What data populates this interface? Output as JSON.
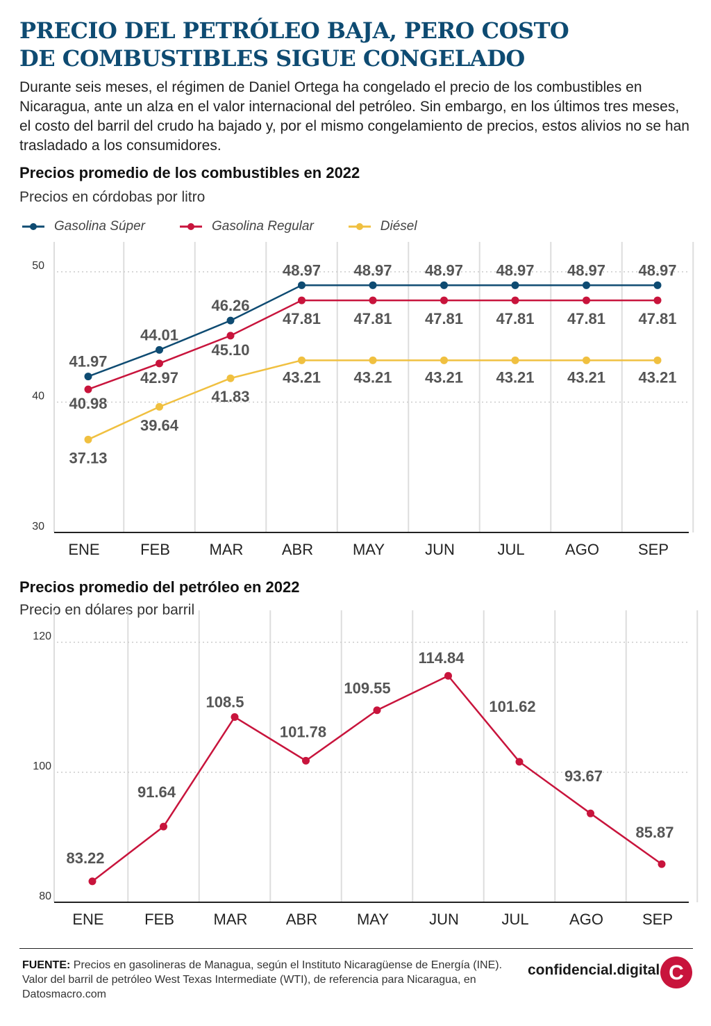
{
  "header": {
    "title_line1": "PRECIO DEL PETRÓLEO BAJA, PERO COSTO",
    "title_line2": "DE COMBUSTIBLES SIGUE CONGELADO",
    "intro": "Durante seis meses, el régimen de Daniel Ortega ha congelado el precio de los combustibles en Nicaragua, ante un alza en el valor internacional del petróleo. Sin embargo, en los últimos tres meses, el costo del barril del crudo ha bajado y, por el mismo congelamiento de precios, estos alivios no se han trasladado a los consumidores."
  },
  "colors": {
    "title": "#0e4b72",
    "super": "#0e4b72",
    "regular": "#c8143c",
    "diesel": "#f0c040",
    "oil": "#c8143c",
    "grid": "#dddddd",
    "axis": "#222222"
  },
  "chart_data": [
    {
      "type": "line",
      "title": "Precios promedio de los combustibles en 2022",
      "subtitle": "Precios en córdobas por litro",
      "categories": [
        "ENE",
        "FEB",
        "MAR",
        "ABR",
        "MAY",
        "JUN",
        "JUL",
        "AGO",
        "SEP"
      ],
      "series": [
        {
          "name": "Gasolina Súper",
          "values": [
            41.97,
            44.01,
            46.26,
            48.97,
            48.97,
            48.97,
            48.97,
            48.97,
            48.97
          ]
        },
        {
          "name": "Gasolina Regular",
          "values": [
            40.98,
            42.97,
            45.1,
            47.81,
            47.81,
            47.81,
            47.81,
            47.81,
            47.81
          ]
        },
        {
          "name": "Diésel",
          "values": [
            37.13,
            39.64,
            41.83,
            43.21,
            43.21,
            43.21,
            43.21,
            43.21,
            43.21
          ]
        }
      ],
      "value_labels": {
        "Gasolina Súper": [
          "41.97",
          "44.01",
          "46.26",
          "48.97",
          "48.97",
          "48.97",
          "48.97",
          "48.97",
          "48.97"
        ],
        "Gasolina Regular": [
          "40.98",
          "42.97",
          "45.10",
          "47.81",
          "47.81",
          "47.81",
          "47.81",
          "47.81",
          "47.81"
        ],
        "Diésel": [
          "37.13",
          "39.64",
          "41.83",
          "43.21",
          "43.21",
          "43.21",
          "43.21",
          "43.21",
          "43.21"
        ]
      },
      "yticks": [
        30,
        40,
        50
      ],
      "ylim": [
        30,
        52
      ],
      "legend": "top-left",
      "grid": "vertical lines, dotted horizontal at ticks"
    },
    {
      "type": "line",
      "title": "Precios promedio del petróleo en 2022",
      "subtitle": "Precio en dólares por barril",
      "categories": [
        "ENE",
        "FEB",
        "MAR",
        "ABR",
        "MAY",
        "JUN",
        "JUL",
        "AGO",
        "SEP"
      ],
      "series": [
        {
          "values": [
            83.22,
            91.64,
            108.5,
            101.78,
            109.55,
            114.84,
            101.62,
            93.67,
            85.87
          ]
        }
      ],
      "value_labels": [
        "83.22",
        "91.64",
        "108.5",
        "101.78",
        "109.55",
        "114.84",
        "101.62",
        "93.67",
        "85.87"
      ],
      "yticks": [
        80,
        100,
        120
      ],
      "ylim": [
        80,
        124
      ],
      "legend": "none",
      "grid": "vertical lines, dotted horizontal at ticks"
    }
  ],
  "footer": {
    "source_label": "FUENTE:",
    "source_text": "Precios en gasolineras de Managua, según el Instituto Nicaragüense de Energía (INE). Valor del barril de petróleo West Texas Intermediate (WTI), de referencia para Nicaragua, en Datosmacro.com",
    "brand": "confidencial.digital",
    "logo_letter": "C"
  }
}
